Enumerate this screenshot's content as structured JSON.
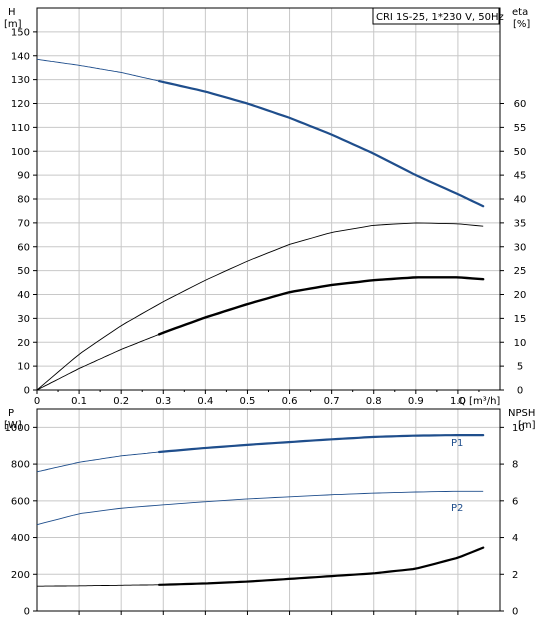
{
  "chart_data": [
    {
      "type": "line",
      "legend_box": "CRI 1S-25, 1*230 V, 50Hz",
      "xlabel": "Q [m³/h]",
      "ylabel_left": "H",
      "ylabel_left_unit": "[m]",
      "ylabel_right": "eta",
      "ylabel_right_unit": "[%]",
      "xlim": [
        0,
        1.1
      ],
      "ylim_left": [
        0,
        160
      ],
      "ylim_right": [
        0,
        80
      ],
      "x_ticks": [
        "0",
        "0.1",
        "0.2",
        "0.3",
        "0.4",
        "0.5",
        "0.6",
        "0.7",
        "0.8",
        "0.9",
        "1.0"
      ],
      "y_left_ticks": [
        "0",
        "10",
        "20",
        "30",
        "40",
        "50",
        "60",
        "70",
        "80",
        "90",
        "100",
        "110",
        "120",
        "130",
        "140",
        "150"
      ],
      "y_right_ticks": [
        "0",
        "5",
        "10",
        "15",
        "20",
        "25",
        "30",
        "35",
        "40",
        "45",
        "50",
        "55",
        "60"
      ],
      "grid": true,
      "series": [
        {
          "key": "H",
          "axis": "left",
          "color": "#1f4e8c",
          "x": [
            0.0,
            0.1,
            0.2,
            0.3,
            0.4,
            0.5,
            0.6,
            0.7,
            0.8,
            0.9,
            1.0,
            1.06
          ],
          "y": [
            138.5,
            136,
            133,
            129,
            125,
            120,
            114,
            107,
            99,
            90,
            82,
            77
          ]
        },
        {
          "key": "eta_thin",
          "axis": "right",
          "color": "#000000",
          "x": [
            0.0,
            0.1,
            0.2,
            0.3,
            0.4,
            0.5,
            0.6,
            0.7,
            0.8,
            0.9,
            1.0,
            1.06
          ],
          "y": [
            0,
            7.5,
            13.5,
            18.5,
            23,
            27,
            30.5,
            33,
            34.5,
            35,
            34.8,
            34.3
          ]
        },
        {
          "key": "eta_thick",
          "axis": "right",
          "color": "#000000",
          "x": [
            0.0,
            0.1,
            0.2,
            0.3,
            0.4,
            0.5,
            0.6,
            0.7,
            0.8,
            0.9,
            1.0,
            1.06
          ],
          "y": [
            0,
            4.5,
            8.5,
            12,
            15.2,
            18,
            20.5,
            22,
            23,
            23.6,
            23.6,
            23.2
          ]
        }
      ]
    },
    {
      "type": "line",
      "ylabel_left": "P",
      "ylabel_left_unit": "[W]",
      "ylabel_right": "NPSH",
      "ylabel_right_unit": "[m]",
      "xlim": [
        0,
        1.1
      ],
      "ylim_left": [
        0,
        1100
      ],
      "ylim_right": [
        0,
        11
      ],
      "y_left_ticks": [
        "0",
        "200",
        "400",
        "600",
        "800",
        "1000"
      ],
      "y_right_ticks": [
        "0",
        "2",
        "4",
        "6",
        "8",
        "10"
      ],
      "grid": true,
      "series": [
        {
          "key": "P1",
          "name": "P1",
          "axis": "left",
          "color": "#1f4e8c",
          "x": [
            0.0,
            0.1,
            0.2,
            0.3,
            0.4,
            0.5,
            0.6,
            0.7,
            0.8,
            0.9,
            1.0,
            1.06
          ],
          "y": [
            758,
            810,
            845,
            868,
            888,
            905,
            920,
            935,
            948,
            955,
            958,
            958
          ]
        },
        {
          "key": "P2",
          "name": "P2",
          "axis": "left",
          "color": "#1f4e8c",
          "x": [
            0.0,
            0.1,
            0.2,
            0.3,
            0.4,
            0.5,
            0.6,
            0.7,
            0.8,
            0.9,
            1.0,
            1.06
          ],
          "y": [
            470,
            530,
            560,
            578,
            595,
            610,
            622,
            633,
            642,
            648,
            652,
            652
          ]
        },
        {
          "key": "NPSH",
          "axis": "right",
          "color": "#000000",
          "x": [
            0.0,
            0.1,
            0.2,
            0.3,
            0.4,
            0.5,
            0.6,
            0.7,
            0.8,
            0.9,
            1.0,
            1.06
          ],
          "y": [
            1.35,
            1.37,
            1.4,
            1.43,
            1.5,
            1.6,
            1.75,
            1.9,
            2.05,
            2.3,
            2.9,
            3.45
          ]
        }
      ]
    }
  ]
}
